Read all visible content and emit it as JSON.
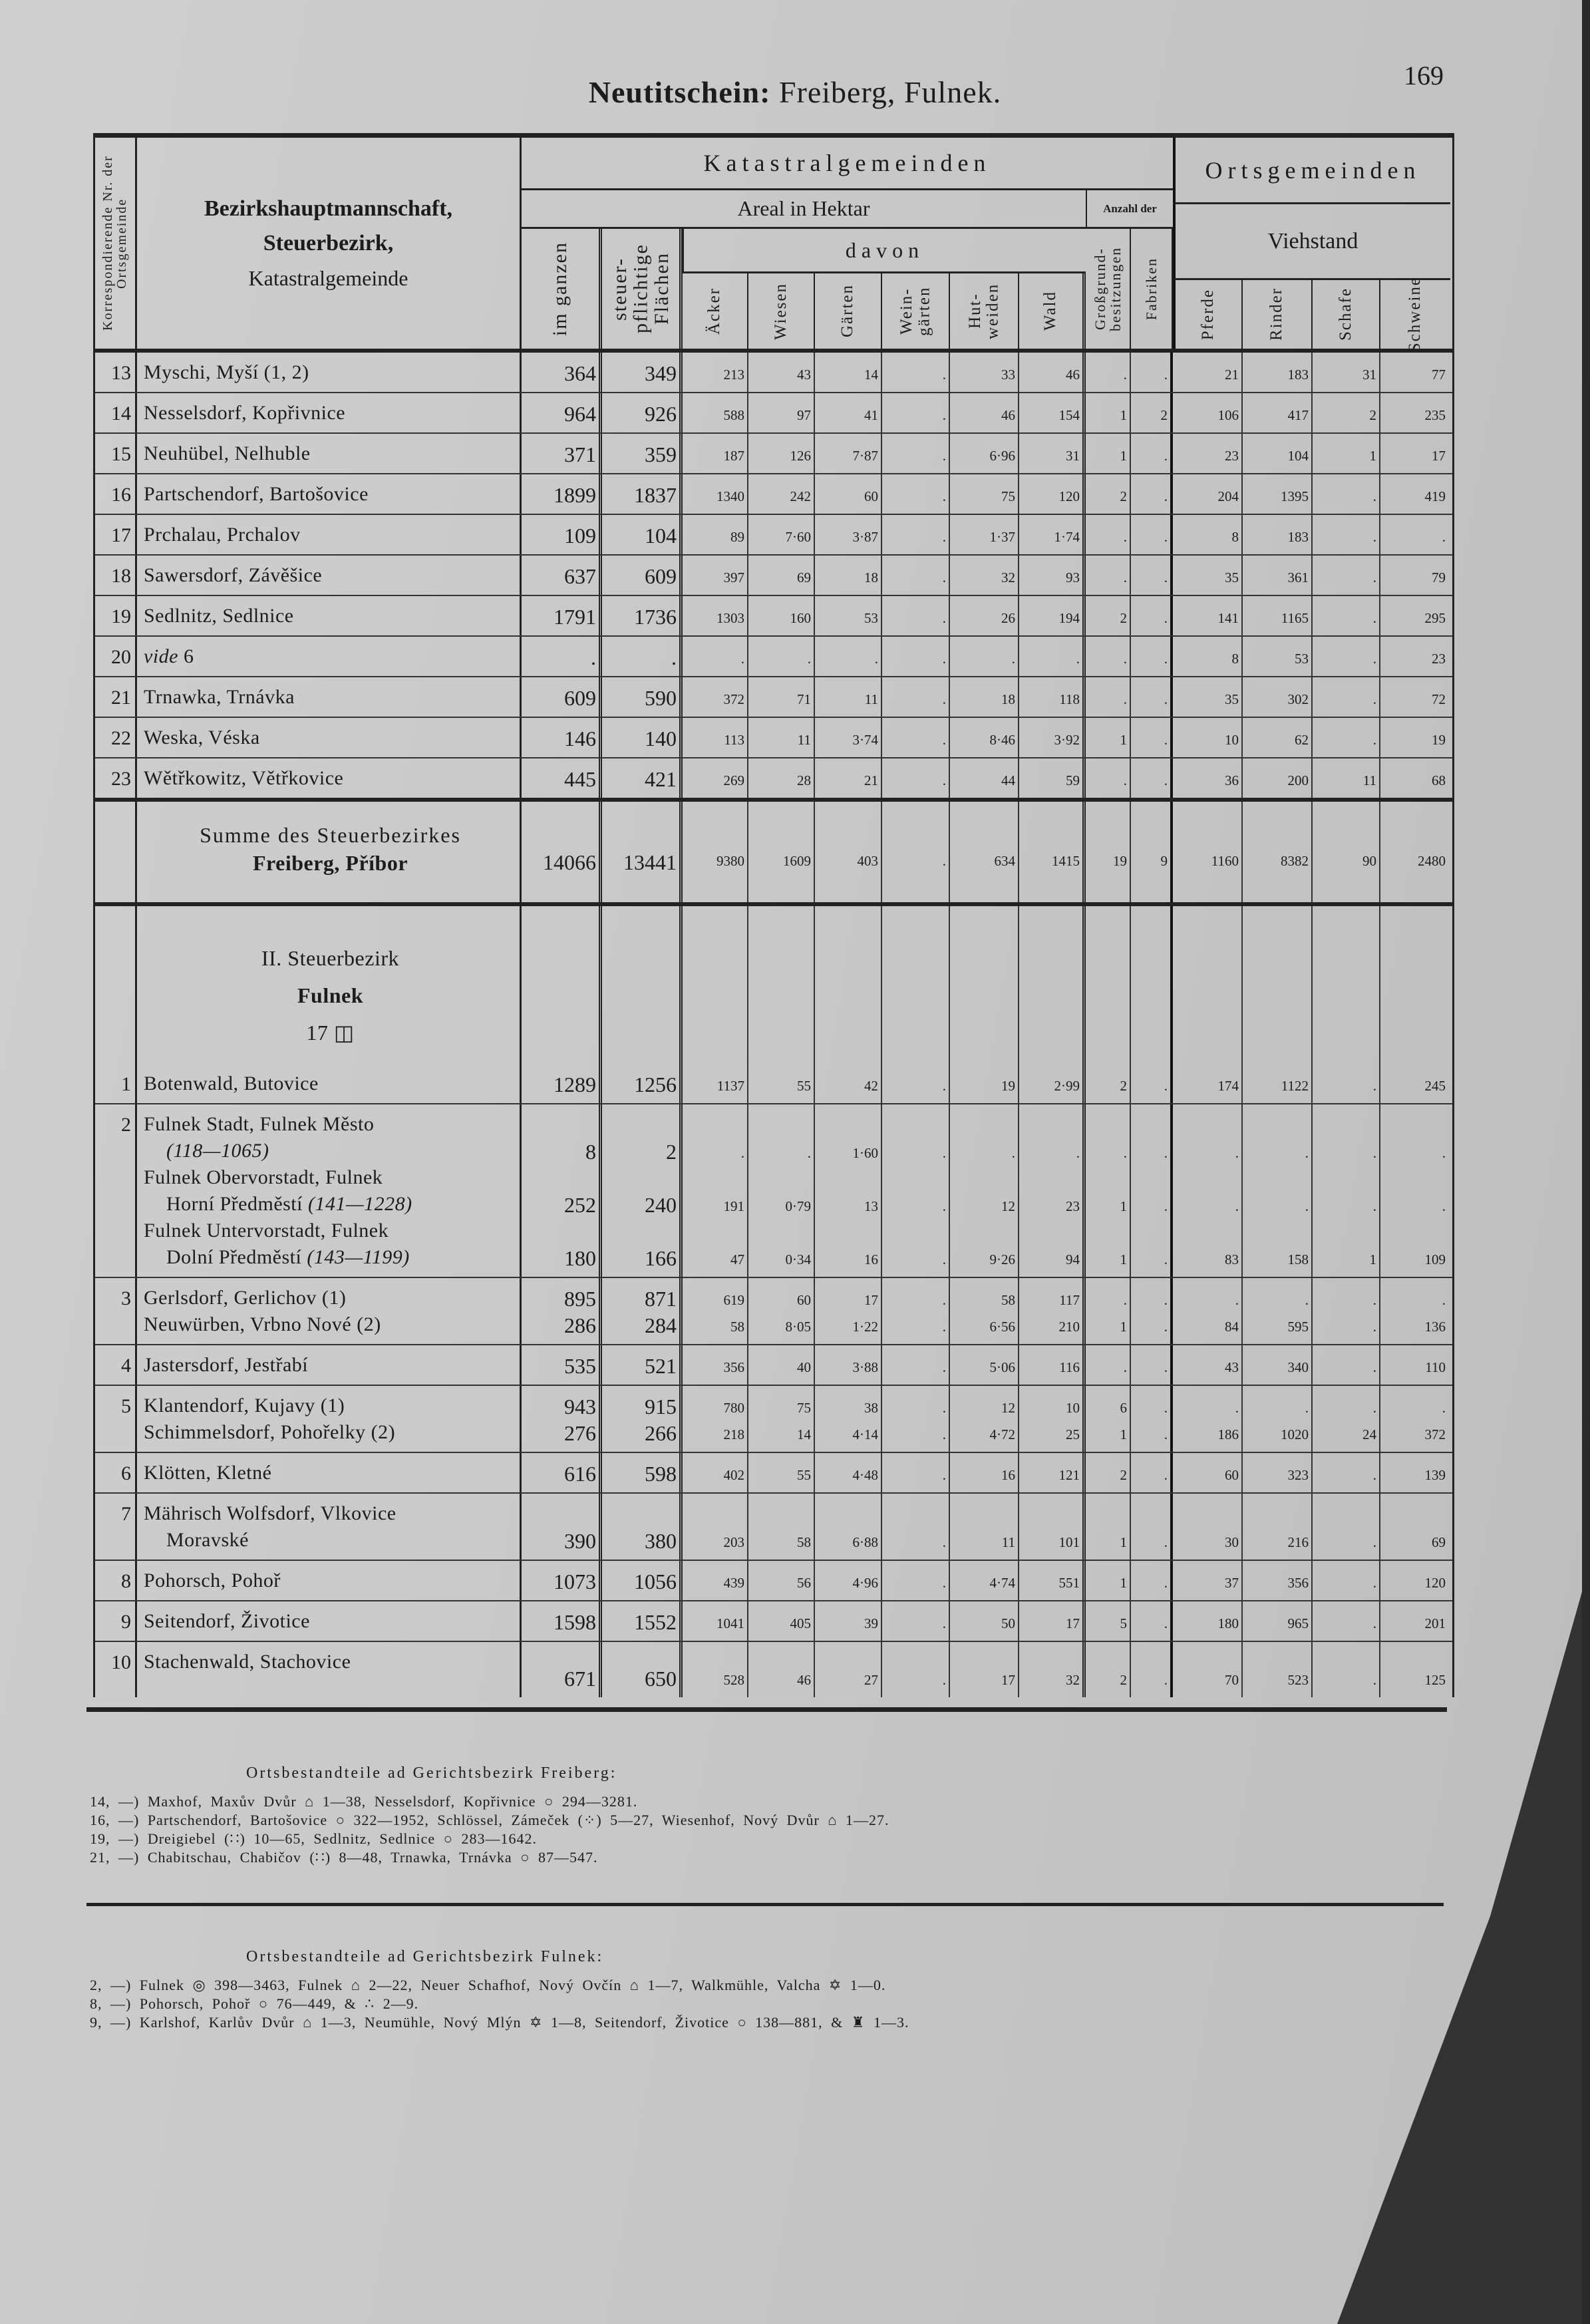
{
  "header": {
    "title_bold": "Neutitschein:",
    "title_rest": "Freiberg, Fulnek.",
    "page_number": "169"
  },
  "table_header": {
    "nr_col": "Korrespondierende Nr. der Ortsgemeinde",
    "name_col_1": "Bezirkshauptmannschaft,",
    "name_col_2": "Steuerbezirk,",
    "name_col_3": "Katastralgemeinde",
    "katastral": "Katastralgemeinden",
    "areal": "Areal in Hektar",
    "anzahl": "Anzahl der",
    "davon": "davon",
    "ortsgemeinden": "Ortsgemeinden",
    "viehstand": "Viehstand",
    "columns": [
      "im ganzen",
      "steuer-pflichtige Flächen",
      "Äcker",
      "Wiesen",
      "Gärten",
      "Wein-gärten",
      "Hut-weiden",
      "Wald",
      "Großgrund-besitzungen",
      "Fabriken",
      "Pferde",
      "Rinder",
      "Schafe",
      "Schweine"
    ]
  },
  "section1_rows": [
    {
      "nr": "13",
      "entries": [
        {
          "lines": [
            {
              "t": "Myschi, Myší (1, 2)"
            }
          ],
          "values": [
            "364",
            "349",
            "213",
            "43",
            "14",
            ".",
            "33",
            "46",
            ".",
            ".",
            "21",
            "183",
            "31",
            "77"
          ]
        }
      ]
    },
    {
      "nr": "14",
      "entries": [
        {
          "lines": [
            {
              "t": "Nesselsdorf, Kopřivnice"
            }
          ],
          "values": [
            "964",
            "926",
            "588",
            "97",
            "41",
            ".",
            "46",
            "154",
            "1",
            "2",
            "106",
            "417",
            "2",
            "235"
          ]
        }
      ]
    },
    {
      "nr": "15",
      "entries": [
        {
          "lines": [
            {
              "t": "Neuhübel, Nelhuble"
            }
          ],
          "values": [
            "371",
            "359",
            "187",
            "126",
            "7·87",
            ".",
            "6·96",
            "31",
            "1",
            ".",
            "23",
            "104",
            "1",
            "17"
          ]
        }
      ]
    },
    {
      "nr": "16",
      "entries": [
        {
          "lines": [
            {
              "t": "Partschendorf, Bartošovice"
            }
          ],
          "values": [
            "1899",
            "1837",
            "1340",
            "242",
            "60",
            ".",
            "75",
            "120",
            "2",
            ".",
            "204",
            "1395",
            ".",
            "419"
          ]
        }
      ]
    },
    {
      "nr": "17",
      "entries": [
        {
          "lines": [
            {
              "t": "Prchalau, Prchalov"
            }
          ],
          "values": [
            "109",
            "104",
            "89",
            "7·60",
            "3·87",
            ".",
            "1·37",
            "1·74",
            ".",
            ".",
            "8",
            "183",
            ".",
            "."
          ]
        }
      ]
    },
    {
      "nr": "18",
      "entries": [
        {
          "lines": [
            {
              "t": "Sawersdorf, Závěšice"
            }
          ],
          "values": [
            "637",
            "609",
            "397",
            "69",
            "18",
            ".",
            "32",
            "93",
            ".",
            ".",
            "35",
            "361",
            ".",
            "79"
          ]
        }
      ]
    },
    {
      "nr": "19",
      "entries": [
        {
          "lines": [
            {
              "t": "Sedlnitz, Sedlnice"
            }
          ],
          "values": [
            "1791",
            "1736",
            "1303",
            "160",
            "53",
            ".",
            "26",
            "194",
            "2",
            ".",
            "141",
            "1165",
            ".",
            "295"
          ]
        }
      ]
    },
    {
      "nr": "20",
      "entries": [
        {
          "lines": [
            {
              "i": "vide",
              "t": " 6"
            }
          ],
          "values": [
            ".",
            ".",
            ".",
            ".",
            ".",
            ".",
            ".",
            ".",
            ".",
            ".",
            "8",
            "53",
            ".",
            "23"
          ]
        }
      ]
    },
    {
      "nr": "21",
      "entries": [
        {
          "lines": [
            {
              "t": "Trnawka, Trnávka"
            }
          ],
          "values": [
            "609",
            "590",
            "372",
            "71",
            "11",
            ".",
            "18",
            "118",
            ".",
            ".",
            "35",
            "302",
            ".",
            "72"
          ]
        }
      ]
    },
    {
      "nr": "22",
      "entries": [
        {
          "lines": [
            {
              "t": "Weska, Véska"
            }
          ],
          "values": [
            "146",
            "140",
            "113",
            "11",
            "3·74",
            ".",
            "8·46",
            "3·92",
            "1",
            ".",
            "10",
            "62",
            ".",
            "19"
          ]
        }
      ]
    },
    {
      "nr": "23",
      "entries": [
        {
          "lines": [
            {
              "t": "Wětřkowitz, Větřkovice"
            }
          ],
          "values": [
            "445",
            "421",
            "269",
            "28",
            "21",
            ".",
            "44",
            "59",
            ".",
            ".",
            "36",
            "200",
            "11",
            "68"
          ]
        }
      ]
    }
  ],
  "sum_row": {
    "label_1": "Summe des Steuerbezirkes",
    "label_2": "Freiberg, Příbor",
    "values": [
      "14066",
      "13441",
      "9380",
      "1609",
      "403",
      ".",
      "634",
      "1415",
      "19",
      "9",
      "1160",
      "8382",
      "90",
      "2480"
    ]
  },
  "section2_heading": {
    "line_1": "II. Steuerbezirk",
    "line_2": "Fulnek",
    "line_3": "17 ◫"
  },
  "section2_rows": [
    {
      "nr": "1",
      "entries": [
        {
          "lines": [
            {
              "t": "Botenwald, Butovice"
            }
          ],
          "values": [
            "1289",
            "1256",
            "1137",
            "55",
            "42",
            ".",
            "19",
            "2·99",
            "2",
            ".",
            "174",
            "1122",
            ".",
            "245"
          ]
        }
      ]
    },
    {
      "nr": "2",
      "entries": [
        {
          "lines": [
            {
              "t": "Fulnek Stadt, Fulnek Město"
            },
            {
              "i": "(118—1065)",
              "ind": true
            }
          ],
          "values": [
            "8",
            "2",
            ".",
            ".",
            "1·60",
            ".",
            ".",
            ".",
            ".",
            ".",
            ".",
            ".",
            ".",
            "."
          ]
        },
        {
          "lines": [
            {
              "t": "Fulnek Obervorstadt, Fulnek"
            },
            {
              "t": "Horní Předměstí ",
              "i": "(141—1228)",
              "ind": true
            }
          ],
          "values": [
            "252",
            "240",
            "191",
            "0·79",
            "13",
            ".",
            "12",
            "23",
            "1",
            ".",
            ".",
            ".",
            ".",
            "."
          ]
        },
        {
          "lines": [
            {
              "t": "Fulnek Untervorstadt, Fulnek"
            },
            {
              "t": "Dolní Předměstí ",
              "i": "(143—1199)",
              "ind": true
            }
          ],
          "values": [
            "180",
            "166",
            "47",
            "0·34",
            "16",
            ".",
            "9·26",
            "94",
            "1",
            ".",
            "83",
            "158",
            "1",
            "109"
          ]
        }
      ]
    },
    {
      "nr": "3",
      "entries": [
        {
          "lines": [
            {
              "t": "Gerlsdorf, Gerlichov (1)"
            }
          ],
          "values": [
            "895",
            "871",
            "619",
            "60",
            "17",
            ".",
            "58",
            "117",
            ".",
            ".",
            ".",
            ".",
            ".",
            "."
          ]
        },
        {
          "lines": [
            {
              "t": "Neuwürben, Vrbno Nové (2)"
            }
          ],
          "values": [
            "286",
            "284",
            "58",
            "8·05",
            "1·22",
            ".",
            "6·56",
            "210",
            "1",
            ".",
            "84",
            "595",
            ".",
            "136"
          ]
        }
      ]
    },
    {
      "nr": "4",
      "entries": [
        {
          "lines": [
            {
              "t": "Jastersdorf, Jestřabí"
            }
          ],
          "values": [
            "535",
            "521",
            "356",
            "40",
            "3·88",
            ".",
            "5·06",
            "116",
            ".",
            ".",
            "43",
            "340",
            ".",
            "110"
          ]
        }
      ]
    },
    {
      "nr": "5",
      "entries": [
        {
          "lines": [
            {
              "t": "Klantendorf, Kujavy (1)"
            }
          ],
          "values": [
            "943",
            "915",
            "780",
            "75",
            "38",
            ".",
            "12",
            "10",
            "6",
            ".",
            ".",
            ".",
            ".",
            "."
          ]
        },
        {
          "lines": [
            {
              "t": "Schimmelsdorf, Pohořelky (2)"
            }
          ],
          "values": [
            "276",
            "266",
            "218",
            "14",
            "4·14",
            ".",
            "4·72",
            "25",
            "1",
            ".",
            "186",
            "1020",
            "24",
            "372"
          ]
        }
      ]
    },
    {
      "nr": "6",
      "entries": [
        {
          "lines": [
            {
              "t": "Klötten, Kletné"
            }
          ],
          "values": [
            "616",
            "598",
            "402",
            "55",
            "4·48",
            ".",
            "16",
            "121",
            "2",
            ".",
            "60",
            "323",
            ".",
            "139"
          ]
        }
      ]
    },
    {
      "nr": "7",
      "entries": [
        {
          "lines": [
            {
              "t": "Mährisch Wolfsdorf, Vlkovice"
            },
            {
              "t": "Moravské",
              "ind": true
            }
          ],
          "values": [
            "390",
            "380",
            "203",
            "58",
            "6·88",
            ".",
            "11",
            "101",
            "1",
            ".",
            "30",
            "216",
            ".",
            "69"
          ]
        }
      ]
    },
    {
      "nr": "8",
      "entries": [
        {
          "lines": [
            {
              "t": "Pohorsch, Pohoř"
            }
          ],
          "values": [
            "1073",
            "1056",
            "439",
            "56",
            "4·96",
            ".",
            "4·74",
            "551",
            "1",
            ".",
            "37",
            "356",
            ".",
            "120"
          ]
        }
      ]
    },
    {
      "nr": "9",
      "entries": [
        {
          "lines": [
            {
              "t": "Seitendorf, Životice"
            }
          ],
          "values": [
            "1598",
            "1552",
            "1041",
            "405",
            "39",
            ".",
            "50",
            "17",
            "5",
            ".",
            "180",
            "965",
            ".",
            "201"
          ]
        }
      ]
    },
    {
      "nr": "10",
      "entries": [
        {
          "lines": [
            {
              "t": "Stachenwald, Stachovice"
            }
          ],
          "values": [
            "671",
            "650",
            "528",
            "46",
            "27",
            ".",
            "17",
            "32",
            "2",
            ".",
            "70",
            "523",
            ".",
            "125"
          ]
        }
      ]
    }
  ],
  "footnotes_freiberg": {
    "title": "Ortsbestandteile ad Gerichtsbezirk Freiberg:",
    "lines": [
      "14, —) Maxhof, Maxův Dvůr ⌂ 1—38,   Nesselsdorf, Kopřivnice ○ 294—3281.",
      "16, —) Partschendorf, Bartošovice ○ 322—1952,   Schlössel, Zámeček (⁘) 5—27,   Wiesenhof, Nový Dvůr ⌂ 1—27.",
      "19, —) Dreigiebel (∷) 10—65,   Sedlnitz, Sedlnice ○ 283—1642.",
      "21, —) Chabitschau, Chabičov (∷) 8—48,   Trnawka, Trnávka ○ 87—547."
    ]
  },
  "footnotes_fulnek": {
    "title": "Ortsbestandteile ad Gerichtsbezirk Fulnek:",
    "lines": [
      "2, —) Fulnek ◎ 398—3463,   Fulnek ⌂ 2—22,   Neuer Schafhof, Nový Ovčín ⌂ 1—7,   Walkmühle, Valcha ✡ 1—0.",
      "8, —) Pohorsch, Pohoř ○ 76—449,   & ∴ 2—9.",
      "9, —) Karlshof, Karlův Dvůr ⌂ 1—3,   Neumühle, Nový Mlýn ✡ 1—8,   Seitendorf, Životice ○ 138—881,   & ♜ 1—3."
    ]
  }
}
